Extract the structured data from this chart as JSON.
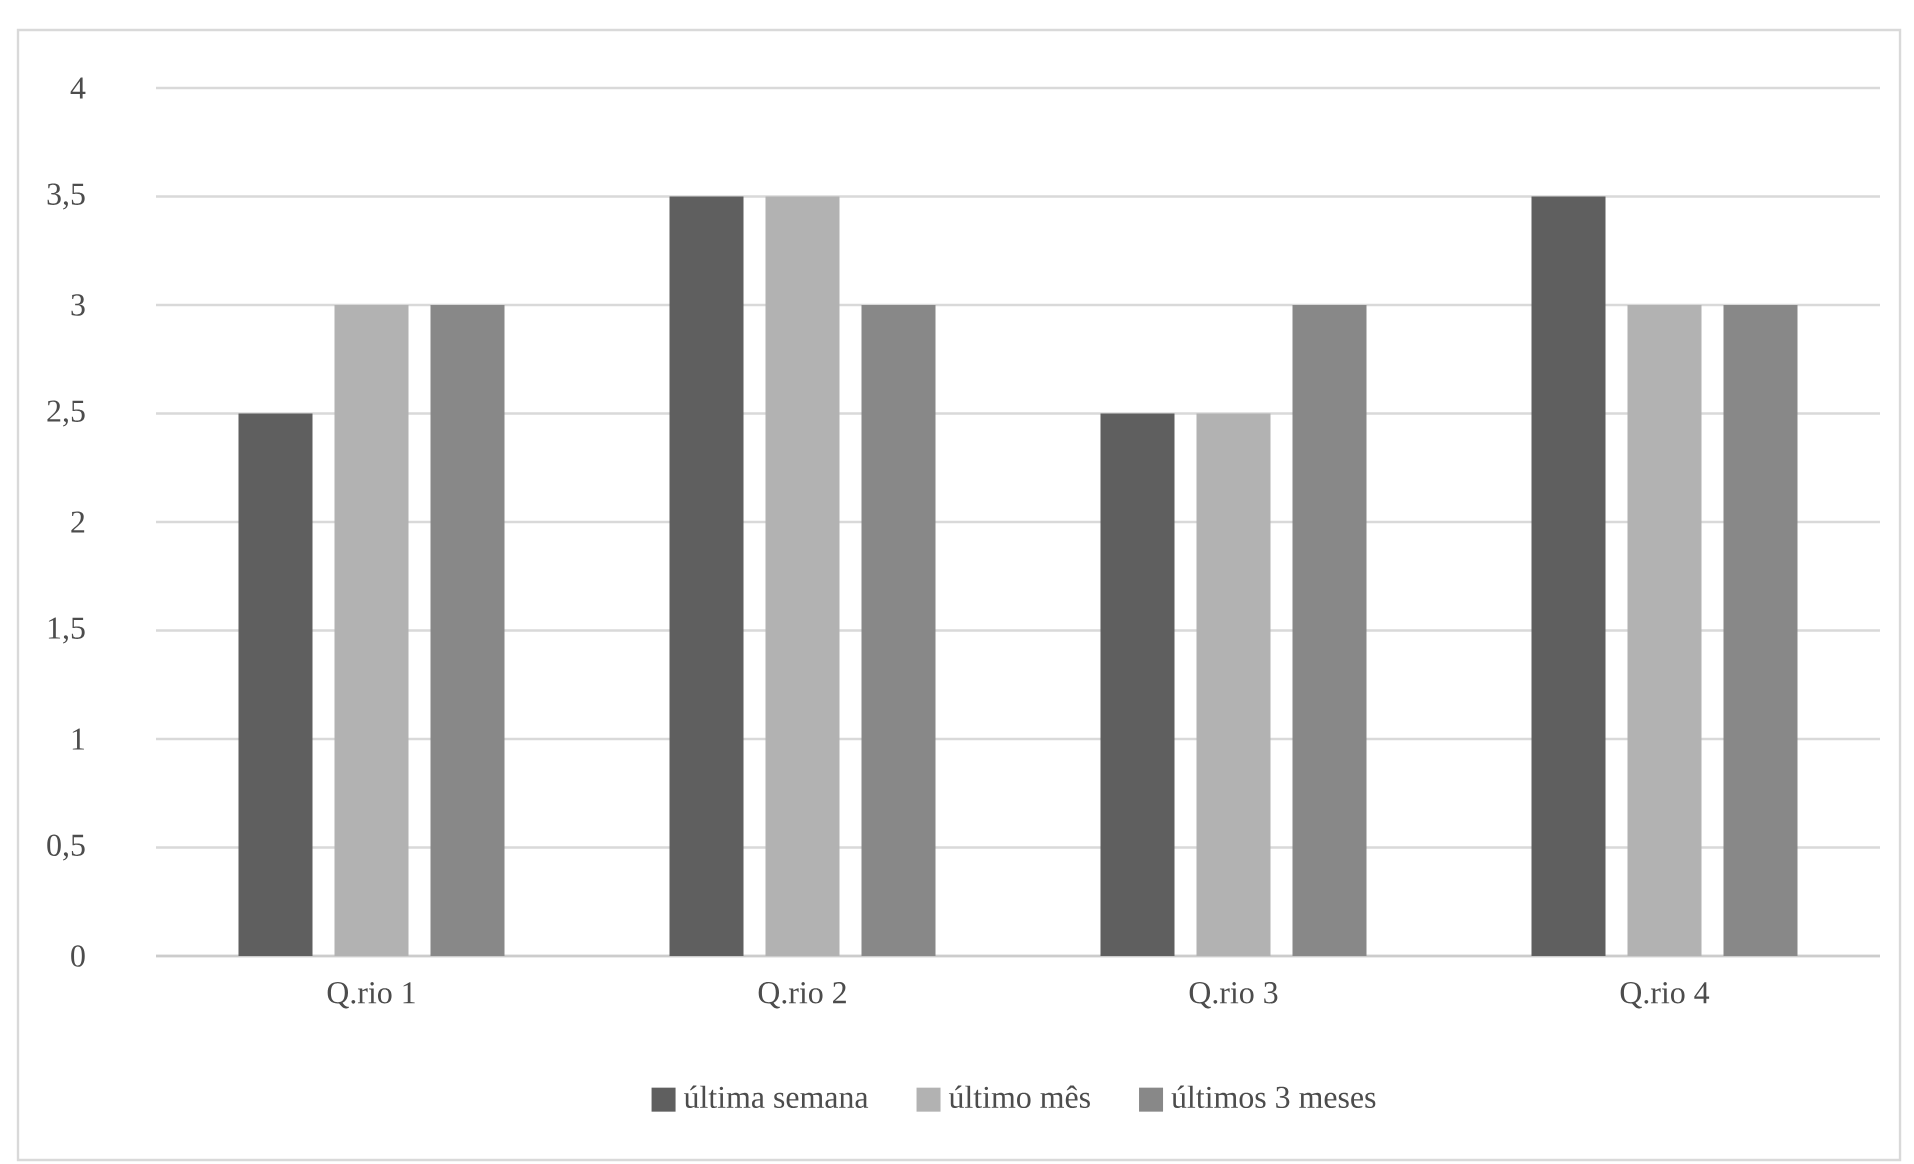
{
  "chart_data": {
    "type": "bar",
    "categories": [
      "Q.rio 1",
      "Q.rio 2",
      "Q.rio 3",
      "Q.rio 4"
    ],
    "series": [
      {
        "name": "última semana",
        "color": "#5f5f5f",
        "values": [
          2.5,
          3.5,
          2.5,
          3.5
        ]
      },
      {
        "name": "último mês",
        "color": "#b2b2b2",
        "values": [
          3,
          3.5,
          2.5,
          3
        ]
      },
      {
        "name": "últimos 3 meses",
        "color": "#888888",
        "values": [
          3,
          3,
          3,
          3
        ]
      }
    ],
    "ylim": [
      0,
      4
    ],
    "yticks": [
      0,
      {
        "value": 0.5,
        "label": "0,5"
      },
      1,
      {
        "value": 1.5,
        "label": "1,5"
      },
      2,
      {
        "value": 2.5,
        "label": "2,5"
      },
      3,
      {
        "value": 3.5,
        "label": "3,5"
      },
      4
    ],
    "grid": "y",
    "legend": "bottom"
  }
}
